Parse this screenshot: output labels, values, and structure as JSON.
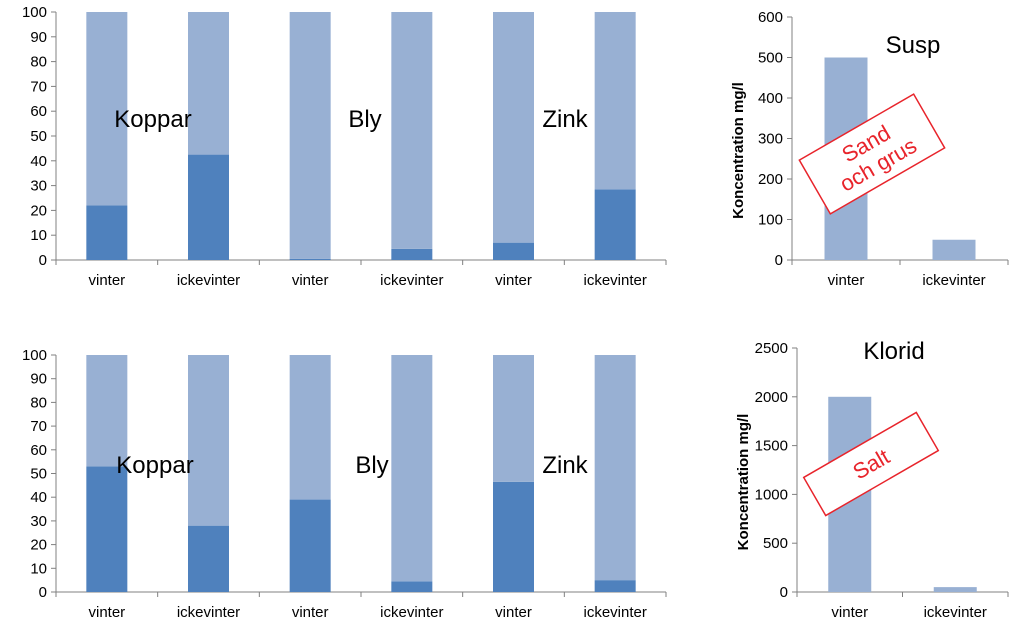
{
  "colors": {
    "fill_light": "#98B0D3",
    "fill_dark": "#4F81BD",
    "axis": "#808080",
    "stamp_red": "#E8242B",
    "text": "#000000"
  },
  "chart_data": [
    {
      "type": "bar",
      "stacked": true,
      "categories": [
        "vinter",
        "ickevinter",
        "vinter",
        "ickevinter",
        "vinter",
        "ickevinter"
      ],
      "group_labels": [
        "Koppar",
        "Bly",
        "Zink"
      ],
      "series": [
        {
          "values": [
            22,
            42.5,
            0.5,
            4.5,
            7,
            28.5
          ]
        },
        {
          "values": [
            78,
            57.5,
            99.5,
            95.5,
            93,
            71.5
          ]
        }
      ],
      "ylim": [
        0,
        100
      ],
      "yticks": [
        0,
        10,
        20,
        30,
        40,
        50,
        60,
        70,
        80,
        90,
        100
      ],
      "grid": false
    },
    {
      "type": "bar",
      "categories": [
        "vinter",
        "ickevinter"
      ],
      "values": [
        500,
        50
      ],
      "title": "Susp",
      "ylabel": "Koncentration mg/l",
      "ylim": [
        0,
        600
      ],
      "yticks": [
        0,
        100,
        200,
        300,
        400,
        500,
        600
      ],
      "stamp": [
        "Sand",
        "och grus"
      ],
      "grid": false
    },
    {
      "type": "bar",
      "stacked": true,
      "categories": [
        "vinter",
        "ickevinter",
        "vinter",
        "ickevinter",
        "vinter",
        "ickevinter"
      ],
      "group_labels": [
        "Koppar",
        "Bly",
        "Zink"
      ],
      "series": [
        {
          "values": [
            53,
            28,
            39,
            4.5,
            46.5,
            5
          ]
        },
        {
          "values": [
            47,
            72,
            61,
            95.5,
            53.5,
            95
          ]
        }
      ],
      "ylim": [
        0,
        100
      ],
      "yticks": [
        0,
        10,
        20,
        30,
        40,
        50,
        60,
        70,
        80,
        90,
        100
      ],
      "grid": false
    },
    {
      "type": "bar",
      "categories": [
        "vinter",
        "ickevinter"
      ],
      "values": [
        2000,
        50
      ],
      "title": "Klorid",
      "ylabel": "Koncentration mg/l",
      "ylim": [
        0,
        2500
      ],
      "yticks": [
        0,
        500,
        1000,
        1500,
        2000,
        2500
      ],
      "stamp": [
        "Salt"
      ],
      "grid": false
    }
  ]
}
